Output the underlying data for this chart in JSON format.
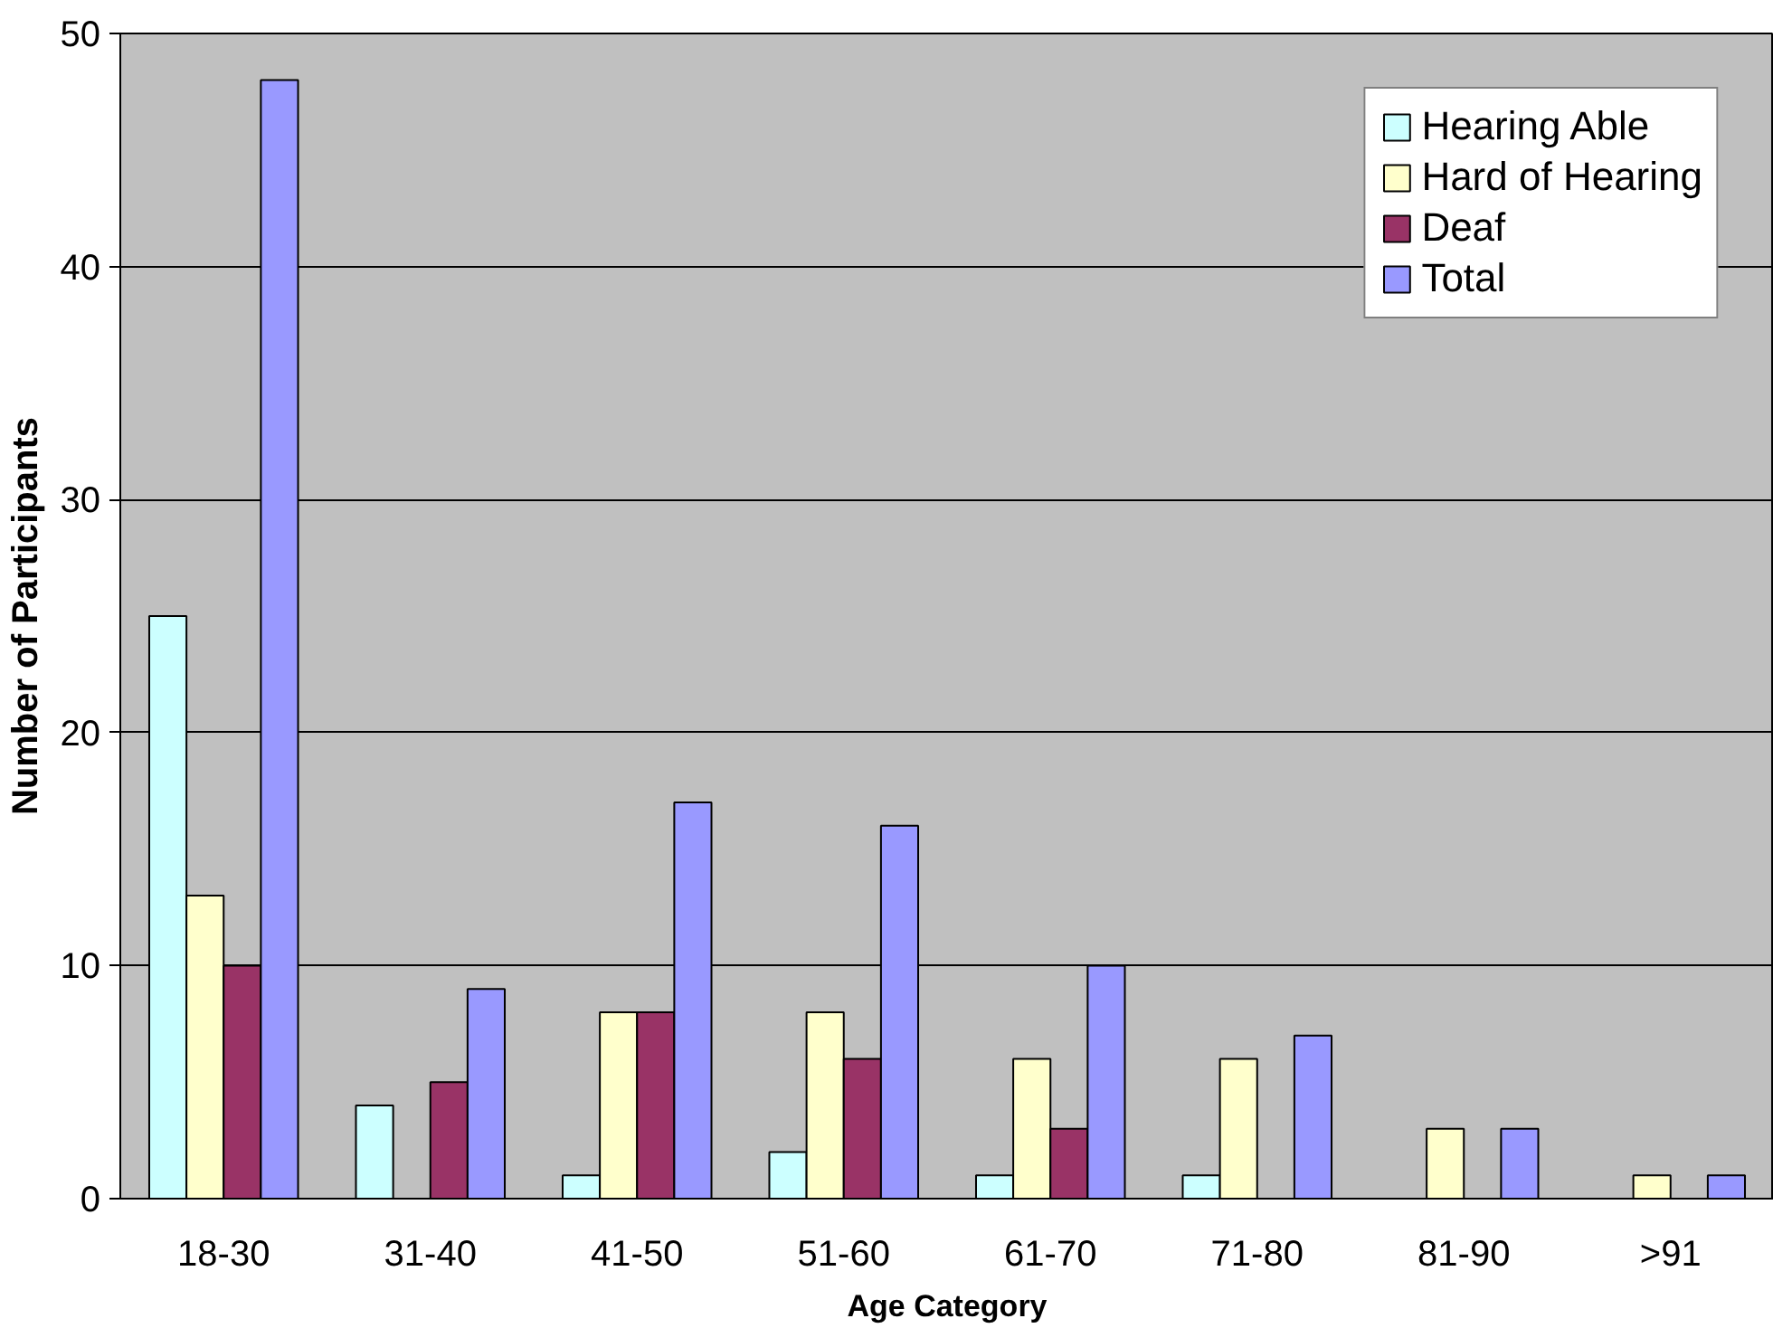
{
  "chart_data": {
    "type": "bar",
    "xlabel": "Age Category",
    "ylabel": "Number of Participants",
    "categories": [
      "18-30",
      "31-40",
      "41-50",
      "51-60",
      "61-70",
      "71-80",
      "81-90",
      ">91"
    ],
    "series": [
      {
        "name": "Hearing Able",
        "color": "#ccffff",
        "values": [
          25,
          4,
          1,
          2,
          1,
          1,
          null,
          null
        ]
      },
      {
        "name": "Hard of Hearing",
        "color": "#ffffcc",
        "values": [
          13,
          null,
          8,
          8,
          6,
          6,
          3,
          1
        ]
      },
      {
        "name": "Deaf",
        "color": "#993366",
        "values": [
          10,
          5,
          8,
          6,
          3,
          null,
          null,
          null
        ]
      },
      {
        "name": "Total",
        "color": "#9999ff",
        "values": [
          48,
          9,
          17,
          16,
          10,
          7,
          3,
          1
        ]
      }
    ],
    "ylim": [
      0,
      50
    ],
    "yticks": [
      0,
      10,
      20,
      30,
      40,
      50
    ],
    "grid": "y",
    "legend": "top right"
  }
}
